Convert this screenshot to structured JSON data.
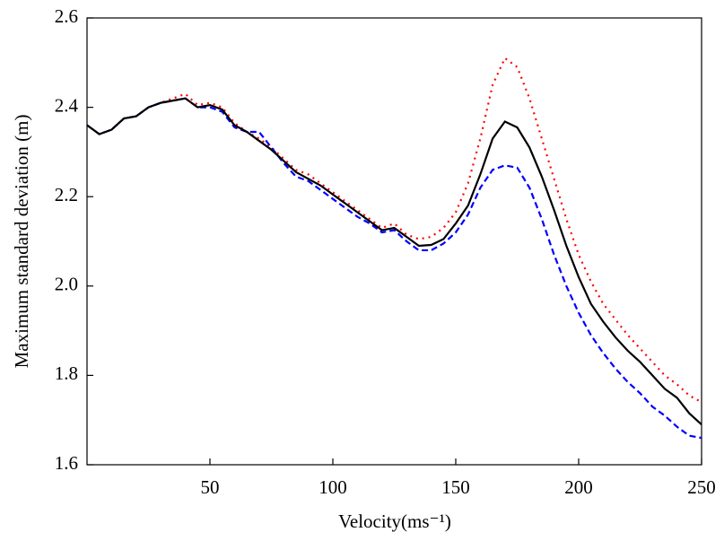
{
  "chart_data": {
    "type": "line",
    "x_label": "Velocity(ms⁻¹)",
    "y_label": "Maximum standard deviation (m)",
    "x": [
      0,
      5,
      10,
      15,
      20,
      25,
      30,
      35,
      40,
      45,
      50,
      55,
      60,
      65,
      70,
      75,
      80,
      85,
      90,
      95,
      100,
      105,
      110,
      115,
      120,
      125,
      130,
      135,
      140,
      145,
      150,
      155,
      160,
      165,
      170,
      175,
      180,
      185,
      190,
      195,
      200,
      205,
      210,
      215,
      220,
      225,
      230,
      235,
      240,
      245,
      250
    ],
    "series": [
      {
        "color": "#ff0000",
        "dash": "2 5",
        "values": [
          2.36,
          2.34,
          2.35,
          2.375,
          2.38,
          2.4,
          2.41,
          2.42,
          2.43,
          2.405,
          2.41,
          2.4,
          2.365,
          2.345,
          2.33,
          2.31,
          2.285,
          2.26,
          2.25,
          2.23,
          2.21,
          2.19,
          2.17,
          2.15,
          2.13,
          2.14,
          2.115,
          2.105,
          2.11,
          2.13,
          2.165,
          2.23,
          2.33,
          2.45,
          2.51,
          2.49,
          2.42,
          2.33,
          2.24,
          2.15,
          2.07,
          2.01,
          1.96,
          1.925,
          1.89,
          1.86,
          1.83,
          1.8,
          1.78,
          1.755,
          1.74
        ]
      },
      {
        "color": "#0000ff",
        "dash": "7 4",
        "values": [
          2.36,
          2.34,
          2.35,
          2.375,
          2.38,
          2.4,
          2.41,
          2.415,
          2.42,
          2.4,
          2.4,
          2.39,
          2.355,
          2.345,
          2.345,
          2.31,
          2.275,
          2.245,
          2.235,
          2.215,
          2.195,
          2.175,
          2.155,
          2.14,
          2.12,
          2.125,
          2.1,
          2.08,
          2.08,
          2.095,
          2.12,
          2.16,
          2.22,
          2.26,
          2.27,
          2.265,
          2.22,
          2.15,
          2.07,
          2.0,
          1.94,
          1.89,
          1.85,
          1.815,
          1.785,
          1.76,
          1.73,
          1.71,
          1.685,
          1.665,
          1.66
        ]
      },
      {
        "color": "#000000",
        "dash": "none",
        "values": [
          2.36,
          2.34,
          2.35,
          2.375,
          2.38,
          2.4,
          2.41,
          2.415,
          2.42,
          2.4,
          2.405,
          2.395,
          2.36,
          2.345,
          2.325,
          2.305,
          2.28,
          2.255,
          2.24,
          2.225,
          2.205,
          2.185,
          2.165,
          2.145,
          2.125,
          2.13,
          2.11,
          2.09,
          2.092,
          2.105,
          2.14,
          2.18,
          2.25,
          2.33,
          2.368,
          2.355,
          2.31,
          2.245,
          2.17,
          2.09,
          2.02,
          1.96,
          1.92,
          1.885,
          1.855,
          1.83,
          1.8,
          1.77,
          1.75,
          1.715,
          1.69
        ]
      }
    ],
    "xlim": [
      0,
      250
    ],
    "xticks": [
      50,
      100,
      150,
      200,
      250
    ],
    "ylim": [
      1.6,
      2.6
    ],
    "yticks": [
      1.6,
      1.8,
      {
        "value": 2,
        "label": "2.0"
      },
      2.2,
      2.4,
      2.6
    ],
    "grid": false
  }
}
